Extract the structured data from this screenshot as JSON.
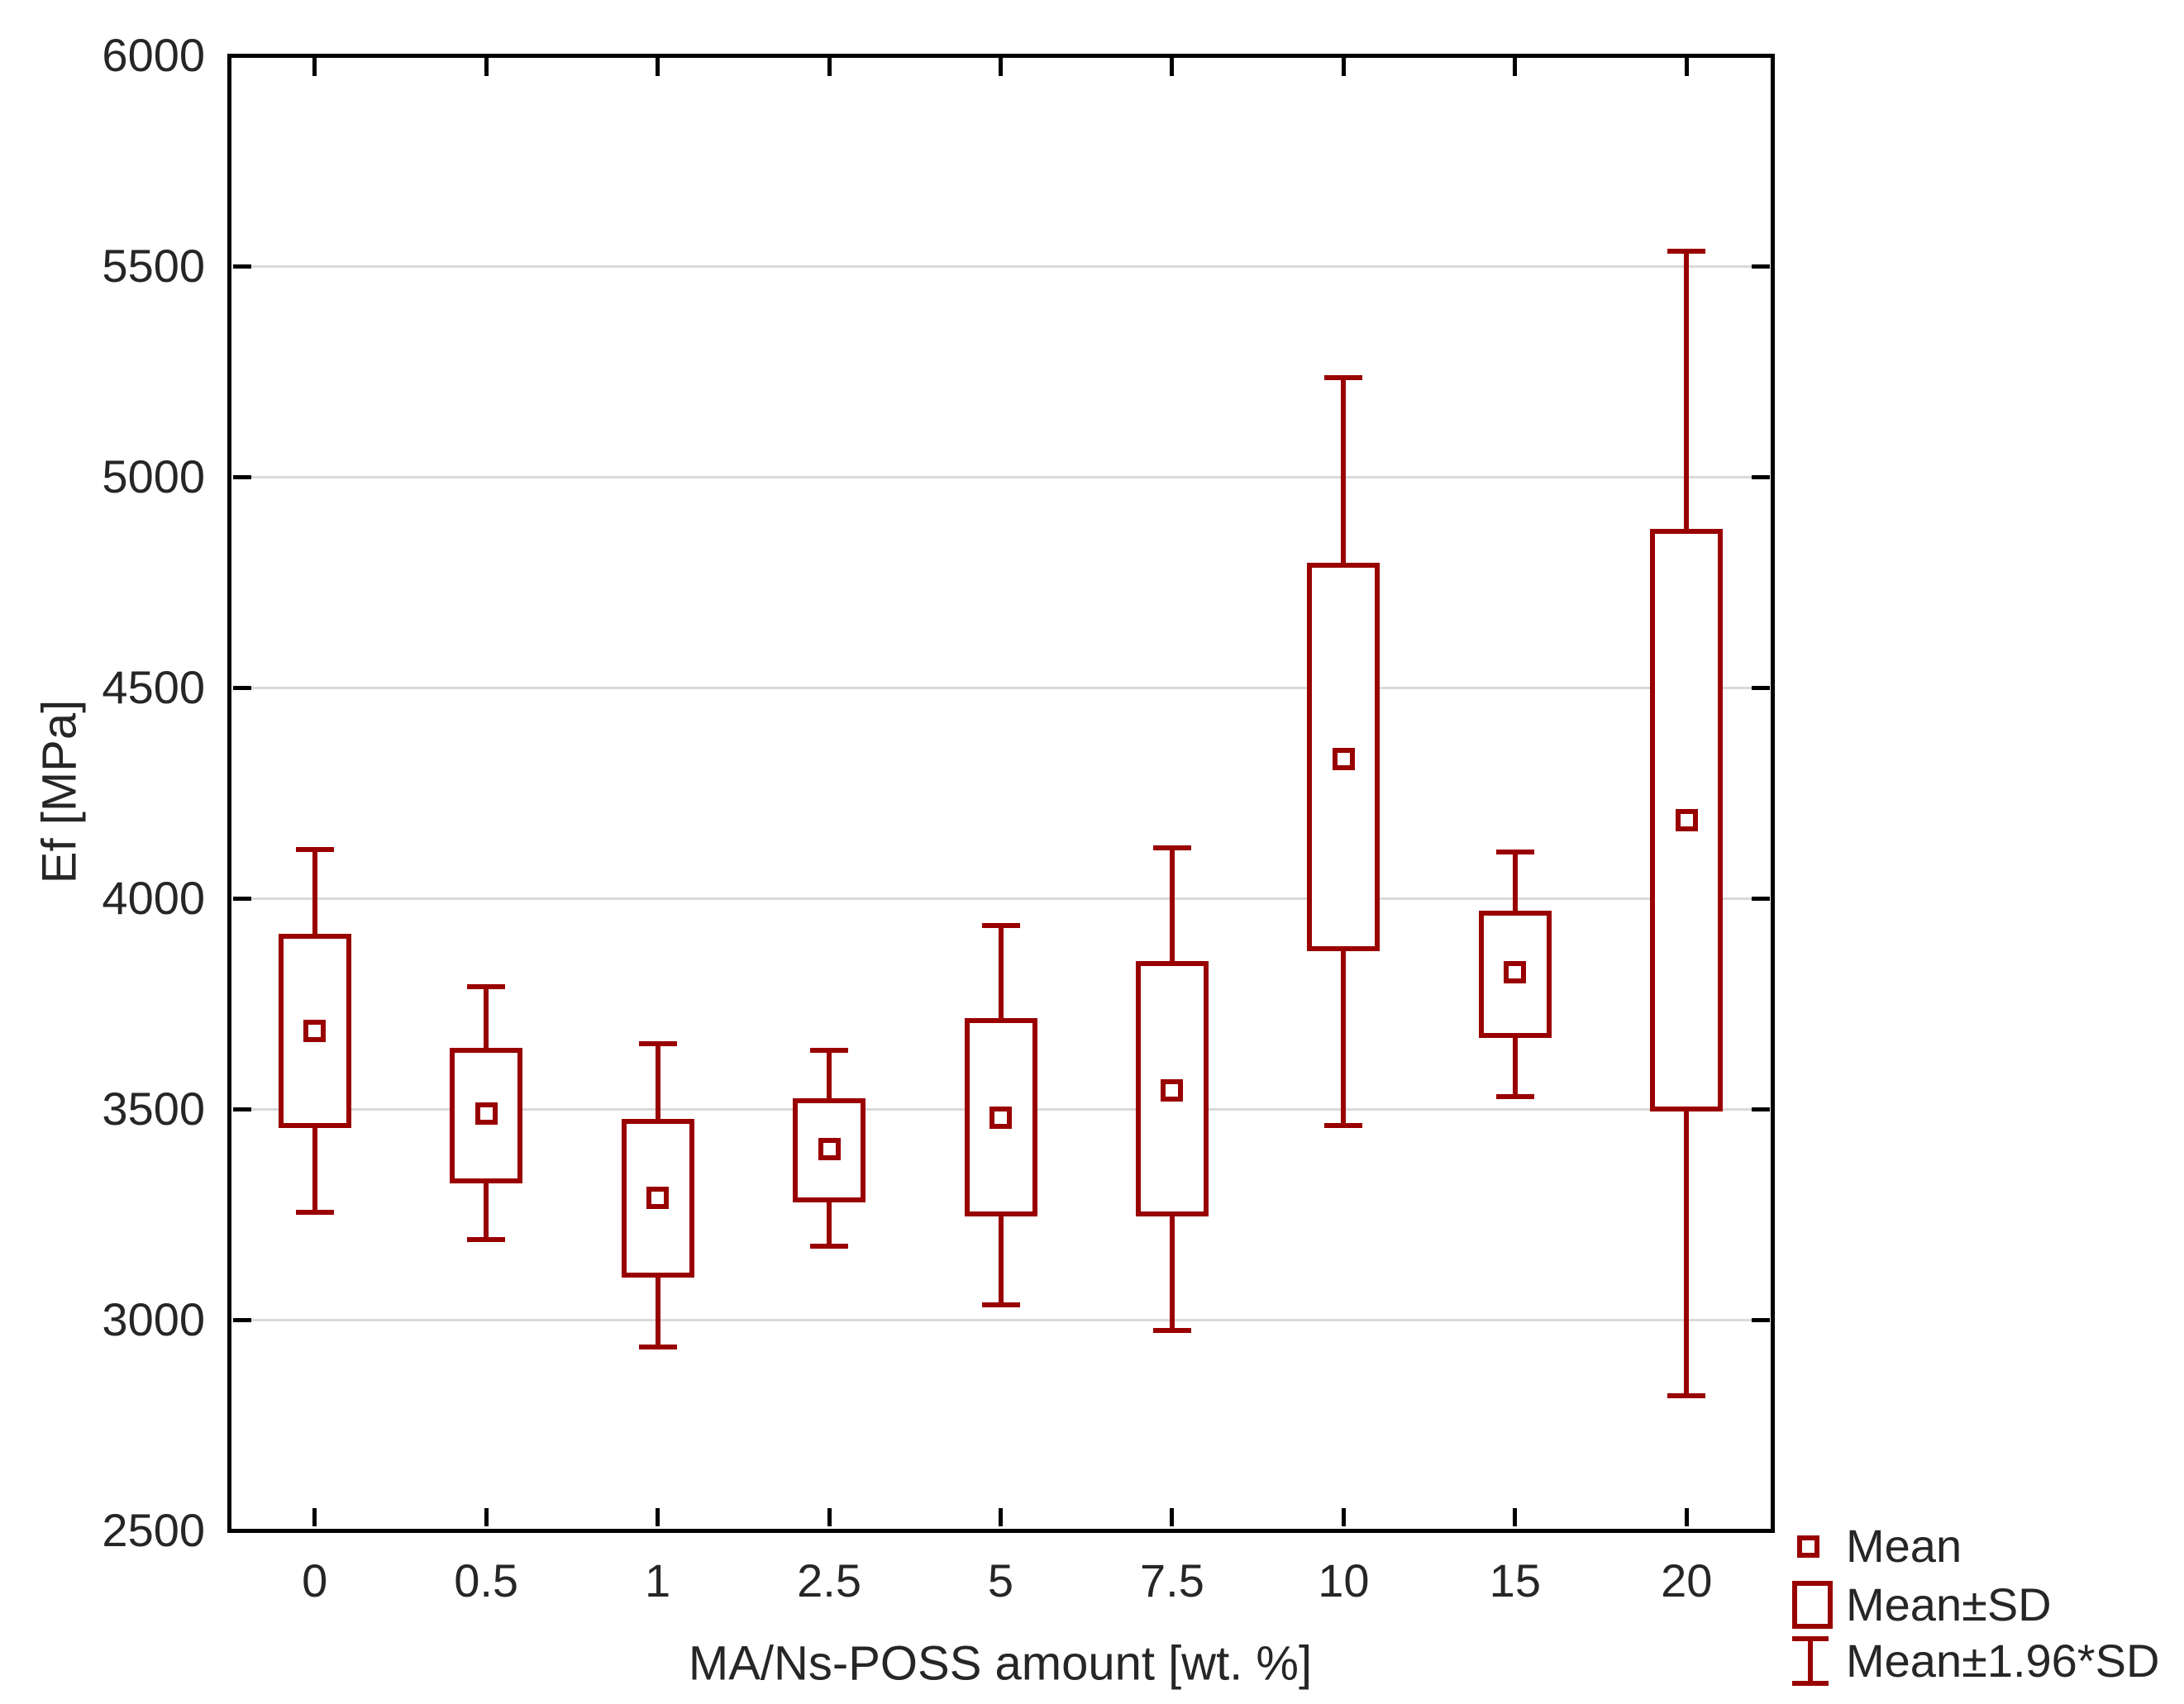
{
  "chart_data": {
    "type": "box",
    "title": "",
    "xlabel": "MA/Ns-POSS amount [wt. %]",
    "ylabel": "Ef [MPa]",
    "categories": [
      "0",
      "0.5",
      "1",
      "2.5",
      "5",
      "7.5",
      "10",
      "15",
      "20"
    ],
    "ylim": [
      2500,
      6000
    ],
    "yticks": [
      2500,
      3000,
      3500,
      4000,
      4500,
      5000,
      5500,
      6000
    ],
    "grid": "horizontal-gridlines",
    "legend_position": "bottom-right",
    "legend": [
      {
        "label": "Mean",
        "symbol": "mean-square"
      },
      {
        "label": "Mean±SD",
        "symbol": "sd-box"
      },
      {
        "label": "Mean±1.96*SD",
        "symbol": "whisker-bar"
      }
    ],
    "points": [
      {
        "category": "0",
        "mean": 3685,
        "mean_minus_sd": 3460,
        "mean_plus_sd": 3910,
        "mean_minus_196sd": 3255,
        "mean_plus_196sd": 4115
      },
      {
        "category": "0.5",
        "mean": 3490,
        "mean_minus_sd": 3330,
        "mean_plus_sd": 3640,
        "mean_minus_196sd": 3190,
        "mean_plus_196sd": 3790
      },
      {
        "category": "1",
        "mean": 3290,
        "mean_minus_sd": 3105,
        "mean_plus_sd": 3470,
        "mean_minus_196sd": 2935,
        "mean_plus_196sd": 3655
      },
      {
        "category": "2.5",
        "mean": 3405,
        "mean_minus_sd": 3285,
        "mean_plus_sd": 3520,
        "mean_minus_196sd": 3175,
        "mean_plus_196sd": 3640
      },
      {
        "category": "5",
        "mean": 3480,
        "mean_minus_sd": 3250,
        "mean_plus_sd": 3710,
        "mean_minus_196sd": 3035,
        "mean_plus_196sd": 3935
      },
      {
        "category": "7.5",
        "mean": 3545,
        "mean_minus_sd": 3250,
        "mean_plus_sd": 3845,
        "mean_minus_196sd": 2975,
        "mean_plus_196sd": 4120
      },
      {
        "category": "10",
        "mean": 4330,
        "mean_minus_sd": 3880,
        "mean_plus_sd": 4790,
        "mean_minus_196sd": 3460,
        "mean_plus_196sd": 5235
      },
      {
        "category": "15",
        "mean": 3825,
        "mean_minus_sd": 3675,
        "mean_plus_sd": 3965,
        "mean_minus_196sd": 3530,
        "mean_plus_196sd": 4110
      },
      {
        "category": "20",
        "mean": 4185,
        "mean_minus_sd": 3500,
        "mean_plus_sd": 4870,
        "mean_minus_196sd": 2820,
        "mean_plus_196sd": 5535
      }
    ],
    "colors": {
      "series": "#990000",
      "grid": "#d9d9d9",
      "axis": "#000000",
      "text": "#262626",
      "background": "#ffffff"
    }
  }
}
